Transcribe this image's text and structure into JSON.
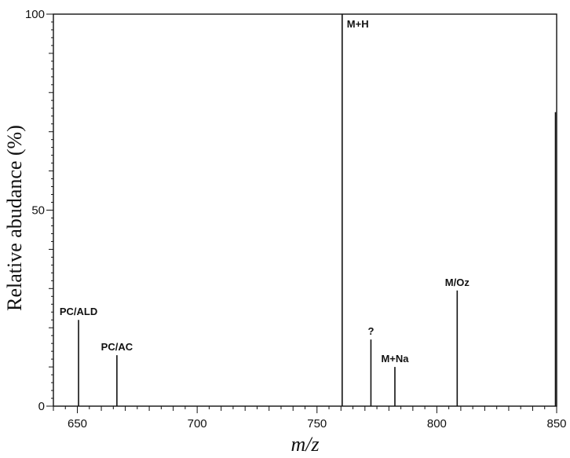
{
  "chart_data": {
    "type": "bar",
    "xlabel": "m/z",
    "ylabel": "Relative abudance (%)",
    "xlim": [
      640,
      850
    ],
    "ylim": [
      0,
      100
    ],
    "xticks": [
      650,
      700,
      750,
      800,
      850
    ],
    "yticks": [
      0,
      50,
      100
    ],
    "grid": false,
    "peaks": [
      {
        "x": 650.5,
        "y": 22,
        "label": "PC/ALD"
      },
      {
        "x": 666.5,
        "y": 13,
        "label": "PC/AC"
      },
      {
        "x": 760.5,
        "y": 100,
        "label": "M+H"
      },
      {
        "x": 772.5,
        "y": 17,
        "label": "?"
      },
      {
        "x": 782.5,
        "y": 10,
        "label": "M+Na"
      },
      {
        "x": 808.5,
        "y": 29.5,
        "label": "M/Oz"
      },
      {
        "x": 849.5,
        "y": 75,
        "label": ""
      }
    ]
  }
}
